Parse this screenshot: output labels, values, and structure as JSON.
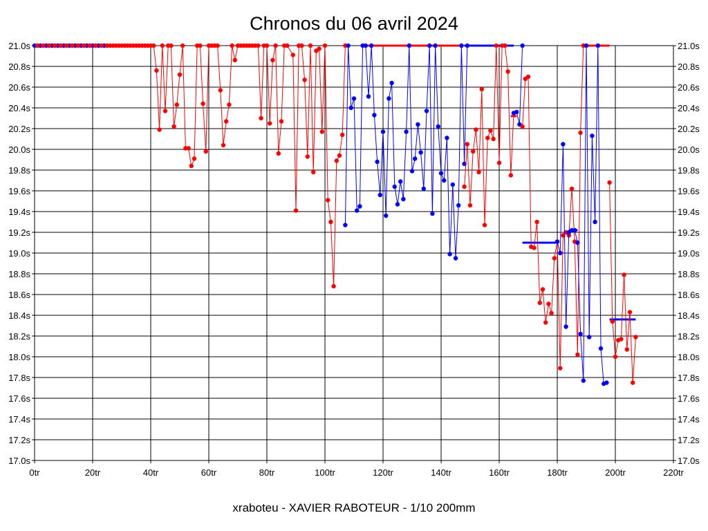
{
  "chart_data": {
    "type": "line",
    "title": "Chronos du 06 avril 2024",
    "footer": "xraboteu - XAVIER RABOTEUR - 1/10 200mm",
    "x_ticks": [
      "0tr",
      "20tr",
      "40tr",
      "60tr",
      "80tr",
      "100tr",
      "120tr",
      "140tr",
      "160tr",
      "180tr",
      "200tr",
      "220tr"
    ],
    "y_ticks": [
      "17.0s",
      "17.2s",
      "17.4s",
      "17.6s",
      "17.8s",
      "18.0s",
      "18.2s",
      "18.4s",
      "18.6s",
      "18.8s",
      "19.0s",
      "19.2s",
      "19.4s",
      "19.6s",
      "19.8s",
      "20.0s",
      "20.2s",
      "20.4s",
      "20.6s",
      "20.8s",
      "21.0s"
    ],
    "xlim": [
      0,
      220
    ],
    "ylim": [
      17.0,
      21.0
    ],
    "grid": true,
    "colors": {
      "red": "#ff0000",
      "blue": "#0000ff"
    },
    "series": [
      {
        "color": "#0000ff",
        "segment": "blue-1",
        "values": [
          [
            0,
            21.0
          ],
          [
            1,
            21.0
          ],
          [
            2,
            21.0
          ],
          [
            3,
            21.0
          ],
          [
            4,
            21.0
          ],
          [
            5,
            21.0
          ],
          [
            6,
            21.0
          ],
          [
            7,
            21.0
          ],
          [
            8,
            21.0
          ],
          [
            9,
            21.0
          ],
          [
            10,
            21.0
          ],
          [
            11,
            21.0
          ],
          [
            12,
            21.0
          ],
          [
            13,
            21.0
          ],
          [
            14,
            21.0
          ],
          [
            15,
            21.0
          ],
          [
            16,
            21.0
          ],
          [
            17,
            21.0
          ],
          [
            18,
            21.0
          ],
          [
            19,
            21.0
          ],
          [
            20,
            21.0
          ],
          [
            21,
            21.0
          ],
          [
            22,
            21.0
          ],
          [
            23,
            21.0
          ],
          [
            24,
            21.0
          ],
          [
            25,
            21.0
          ]
        ]
      },
      {
        "color": "#ff0000",
        "segment": "red-1",
        "values": [
          [
            1,
            21.0
          ],
          [
            3,
            21.0
          ],
          [
            5,
            21.0
          ],
          [
            7,
            21.0
          ],
          [
            9,
            21.0
          ],
          [
            11,
            21.0
          ],
          [
            13,
            21.0
          ],
          [
            15,
            21.0
          ],
          [
            17,
            21.0
          ],
          [
            19,
            21.0
          ],
          [
            21,
            21.0
          ],
          [
            23,
            21.0
          ],
          [
            25,
            21.0
          ],
          [
            26,
            21.0
          ],
          [
            27,
            21.0
          ],
          [
            28,
            21.0
          ],
          [
            29,
            21.0
          ],
          [
            30,
            21.0
          ],
          [
            31,
            21.0
          ],
          [
            32,
            21.0
          ],
          [
            33,
            21.0
          ],
          [
            34,
            21.0
          ],
          [
            35,
            21.0
          ],
          [
            36,
            21.0
          ],
          [
            37,
            21.0
          ],
          [
            38,
            21.0
          ],
          [
            39,
            21.0
          ],
          [
            40,
            21.0
          ],
          [
            41,
            21.0
          ],
          [
            42,
            20.76
          ],
          [
            43,
            20.19
          ],
          [
            44,
            21.0
          ],
          [
            45,
            20.37
          ],
          [
            46,
            21.0
          ],
          [
            47,
            21.0
          ],
          [
            48,
            20.22
          ],
          [
            49,
            20.43
          ],
          [
            50,
            20.72
          ],
          [
            51,
            21.0
          ],
          [
            52,
            20.01
          ],
          [
            53,
            20.01
          ],
          [
            54,
            19.84
          ],
          [
            55,
            19.91
          ],
          [
            56,
            21.0
          ],
          [
            57,
            21.0
          ],
          [
            58,
            20.44
          ],
          [
            59,
            19.98
          ],
          [
            60,
            21.0
          ],
          [
            61,
            21.0
          ],
          [
            62,
            21.0
          ],
          [
            63,
            21.0
          ],
          [
            64,
            20.57
          ],
          [
            65,
            20.04
          ],
          [
            66,
            20.27
          ],
          [
            67,
            20.43
          ],
          [
            68,
            21.0
          ],
          [
            69,
            20.86
          ],
          [
            70,
            21.0
          ],
          [
            71,
            21.0
          ],
          [
            72,
            21.0
          ],
          [
            73,
            21.0
          ],
          [
            74,
            21.0
          ],
          [
            75,
            21.0
          ],
          [
            76,
            21.0
          ],
          [
            77,
            21.0
          ],
          [
            78,
            20.3
          ],
          [
            79,
            21.0
          ],
          [
            80,
            21.0
          ],
          [
            81,
            20.25
          ],
          [
            82,
            20.86
          ],
          [
            83,
            21.0
          ],
          [
            84,
            19.96
          ],
          [
            85,
            20.27
          ],
          [
            86,
            21.0
          ],
          [
            87,
            21.0
          ],
          [
            89,
            20.91
          ],
          [
            90,
            19.41
          ],
          [
            91,
            21.0
          ],
          [
            92,
            21.0
          ],
          [
            93,
            20.67
          ],
          [
            94,
            19.93
          ],
          [
            95,
            21.0
          ],
          [
            96,
            19.78
          ],
          [
            97,
            20.95
          ],
          [
            98,
            20.97
          ],
          [
            99,
            20.17
          ],
          [
            100,
            21.0
          ],
          [
            101,
            19.51
          ],
          [
            102,
            19.3
          ],
          [
            103,
            18.68
          ],
          [
            104,
            19.89
          ],
          [
            105,
            19.94
          ],
          [
            106,
            20.14
          ],
          [
            107,
            21.0
          ]
        ]
      },
      {
        "color": "#0000ff",
        "segment": "blue-2",
        "values": [
          [
            107,
            19.27
          ],
          [
            108,
            21.0
          ],
          [
            109,
            20.4
          ],
          [
            110,
            20.49
          ],
          [
            111,
            19.41
          ],
          [
            112,
            19.45
          ],
          [
            113,
            21.0
          ],
          [
            114,
            21.0
          ],
          [
            115,
            20.51
          ],
          [
            116,
            21.0
          ],
          [
            117,
            20.33
          ],
          [
            118,
            19.88
          ],
          [
            119,
            19.56
          ],
          [
            120,
            20.17
          ],
          [
            121,
            19.36
          ],
          [
            122,
            20.49
          ],
          [
            123,
            20.64
          ],
          [
            124,
            19.64
          ],
          [
            125,
            19.47
          ],
          [
            126,
            19.69
          ],
          [
            127,
            19.52
          ],
          [
            128,
            20.17
          ],
          [
            129,
            21.0
          ],
          [
            130,
            19.79
          ],
          [
            131,
            19.91
          ],
          [
            132,
            20.24
          ],
          [
            133,
            19.97
          ],
          [
            134,
            19.62
          ],
          [
            135,
            20.37
          ],
          [
            136,
            21.0
          ],
          [
            137,
            19.38
          ],
          [
            138,
            21.0
          ],
          [
            139,
            20.22
          ],
          [
            140,
            19.77
          ],
          [
            141,
            19.7
          ],
          [
            142,
            20.11
          ],
          [
            143,
            18.99
          ],
          [
            144,
            19.66
          ],
          [
            145,
            18.95
          ],
          [
            146,
            19.46
          ],
          [
            147,
            21.0
          ],
          [
            148,
            19.86
          ],
          [
            149,
            21.0
          ]
        ]
      },
      {
        "color": "#ff0000",
        "segment": "red-2",
        "values": [
          [
            148,
            19.64
          ],
          [
            149,
            20.05
          ],
          [
            150,
            19.46
          ],
          [
            151,
            19.98
          ],
          [
            152,
            20.19
          ],
          [
            153,
            19.78
          ],
          [
            154,
            20.58
          ],
          [
            155,
            19.27
          ],
          [
            156,
            20.11
          ],
          [
            157,
            20.18
          ],
          [
            158,
            20.1
          ],
          [
            159,
            21.0
          ],
          [
            160,
            19.87
          ],
          [
            161,
            21.0
          ],
          [
            162,
            21.0
          ],
          [
            163,
            20.75
          ],
          [
            164,
            19.75
          ],
          [
            165,
            20.35
          ]
        ]
      },
      {
        "color": "#0000ff",
        "segment": "blue-3",
        "values": [
          [
            165,
            20.35
          ],
          [
            166,
            20.36
          ],
          [
            167,
            20.24
          ],
          [
            168,
            21.0
          ]
        ]
      },
      {
        "color": "#ff0000",
        "segment": "red-3",
        "values": [
          [
            168,
            20.22
          ],
          [
            169,
            20.68
          ],
          [
            170,
            20.7
          ],
          [
            171,
            19.06
          ],
          [
            172,
            19.05
          ],
          [
            173,
            19.3
          ],
          [
            174,
            18.52
          ],
          [
            175,
            18.65
          ],
          [
            176,
            18.33
          ],
          [
            177,
            18.51
          ],
          [
            178,
            18.42
          ],
          [
            179,
            18.95
          ],
          [
            180,
            19.11
          ],
          [
            181,
            17.89
          ],
          [
            182,
            19.17
          ],
          [
            183,
            19.2
          ],
          [
            184,
            19.17
          ],
          [
            185,
            19.62
          ],
          [
            186,
            19.11
          ],
          [
            187,
            18.02
          ],
          [
            188,
            20.16
          ],
          [
            189,
            21.0
          ]
        ]
      },
      {
        "color": "#0000ff",
        "segment": "blue-4",
        "values": [
          [
            180,
            19.11
          ],
          [
            181,
            19.0
          ],
          [
            182,
            20.05
          ],
          [
            183,
            18.29
          ],
          [
            184,
            19.2
          ],
          [
            185,
            19.22
          ],
          [
            186,
            19.22
          ],
          [
            187,
            19.1
          ],
          [
            188,
            18.22
          ],
          [
            189,
            17.77
          ],
          [
            190,
            21.0
          ],
          [
            191,
            18.19
          ],
          [
            192,
            20.13
          ],
          [
            193,
            19.3
          ],
          [
            194,
            21.0
          ],
          [
            195,
            18.08
          ],
          [
            196,
            17.74
          ],
          [
            197,
            17.75
          ]
        ]
      },
      {
        "color": "#ff0000",
        "segment": "red-4",
        "values": [
          [
            198,
            19.68
          ],
          [
            199,
            18.34
          ],
          [
            200,
            18.0
          ],
          [
            201,
            18.16
          ],
          [
            202,
            18.17
          ],
          [
            203,
            18.79
          ],
          [
            204,
            18.07
          ],
          [
            205,
            18.43
          ],
          [
            206,
            17.75
          ],
          [
            207,
            18.19
          ]
        ]
      }
    ],
    "extra_lines": [
      {
        "color": "#0000ff",
        "from": [
          148,
          21.0
        ],
        "to": [
          165,
          21.0
        ]
      },
      {
        "color": "#ff0000",
        "from": [
          113,
          21.0
        ],
        "to": [
          147,
          21.0
        ]
      },
      {
        "color": "#ff0000",
        "from": [
          189,
          21.0
        ],
        "to": [
          198,
          21.0
        ]
      },
      {
        "color": "#0000ff",
        "from": [
          168,
          19.1
        ],
        "to": [
          180,
          19.1
        ]
      },
      {
        "color": "#0000ff",
        "from": [
          184,
          19.22
        ],
        "to": [
          187,
          19.22
        ]
      },
      {
        "color": "#0000ff",
        "from": [
          198,
          18.36
        ],
        "to": [
          207,
          18.36
        ]
      },
      {
        "color": "#ff0000",
        "from": [
          164,
          20.32
        ],
        "to": [
          166,
          20.32
        ]
      }
    ]
  }
}
